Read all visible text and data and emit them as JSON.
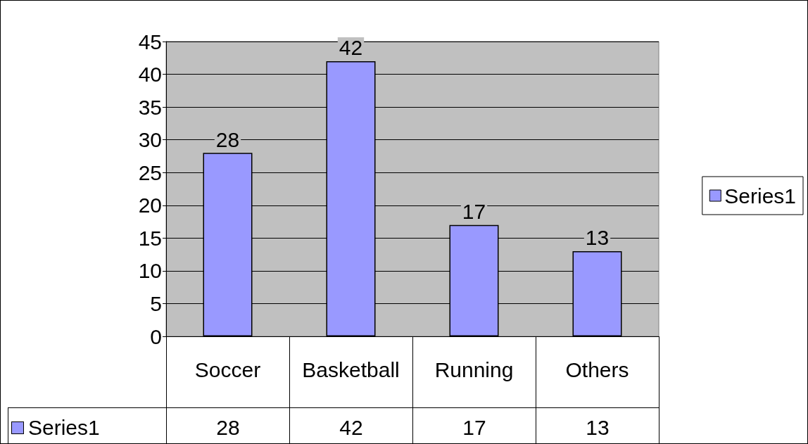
{
  "chart_data": {
    "type": "bar",
    "categories": [
      "Soccer",
      "Basketball",
      "Running",
      "Others"
    ],
    "series": [
      {
        "name": "Series1",
        "color": "#9999ff",
        "values": [
          28,
          42,
          17,
          13
        ],
        "value_labels": [
          "28",
          "42",
          "17",
          "13"
        ]
      }
    ],
    "ylim": [
      0,
      45
    ],
    "yticks": [
      0,
      5,
      10,
      15,
      20,
      25,
      30,
      35,
      40,
      45
    ],
    "grid": "y",
    "legend": "right",
    "data_labels": true
  }
}
